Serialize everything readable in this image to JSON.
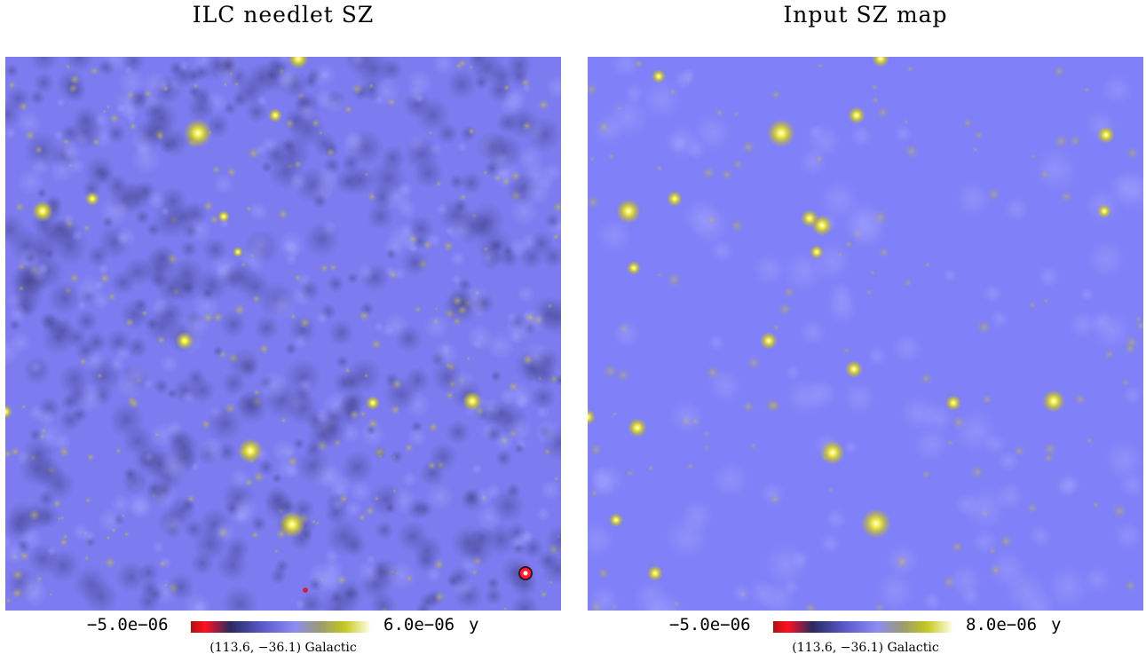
{
  "panels": [
    {
      "title": "ILC needlet SZ",
      "colorbar": {
        "min_label": "−5.0e−06",
        "max_label": "6.0e−06",
        "unit": "y"
      },
      "coordinate_label": "(113.6, −36.1) Galactic",
      "background_color": "#7c7cf0",
      "noise": "high"
    },
    {
      "title": "Input SZ map",
      "colorbar": {
        "min_label": "−5.0e−06",
        "max_label": "8.0e−06",
        "unit": "y"
      },
      "coordinate_label": "(113.6, −36.1) Galactic",
      "background_color": "#8080f8",
      "noise": "low"
    }
  ]
}
